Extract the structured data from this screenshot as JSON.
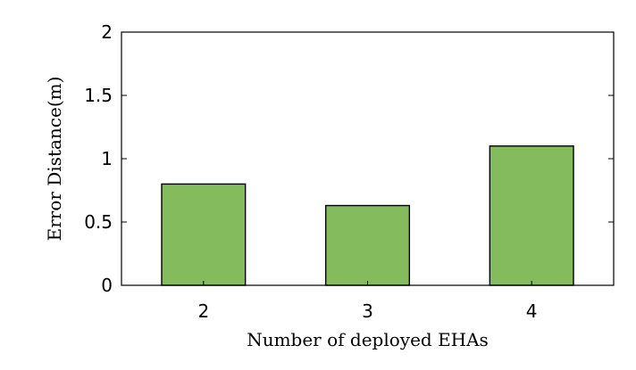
{
  "chart_data": {
    "type": "bar",
    "categories": [
      "2",
      "3",
      "4"
    ],
    "values": [
      0.8,
      0.63,
      1.1
    ],
    "xlabel": "Number of deployed EHAs",
    "ylabel": "Error Distance(m)",
    "ylim": [
      0,
      2
    ],
    "yticks": [
      0,
      0.5,
      1,
      1.5,
      2
    ],
    "ytick_labels": [
      "0",
      "0.5",
      "1",
      "1.5",
      "2"
    ],
    "bar_color": "#84bb5c",
    "grid": false,
    "legend": "none"
  }
}
